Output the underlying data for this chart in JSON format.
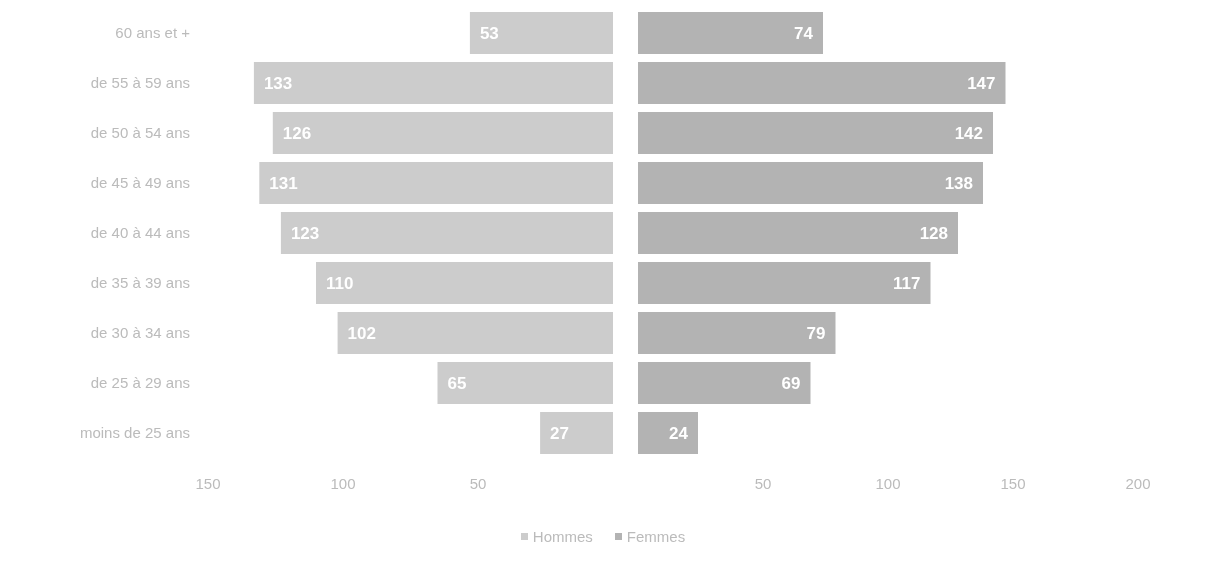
{
  "chart_data": [
    {
      "type": "bar",
      "orientation": "horizontal",
      "categories": [
        "60 ans et +",
        "de 55 à 59 ans",
        "de 50 à 54 ans",
        "de 45 à 49 ans",
        "de 40 à 44 ans",
        "de 35 à 39 ans",
        "de 30 à 34 ans",
        "de 25 à 29 ans",
        "moins de 25 ans"
      ],
      "series": [
        {
          "name": "Hommes",
          "color": "#cccccc",
          "values": [
            53,
            133,
            126,
            131,
            123,
            110,
            102,
            65,
            27
          ]
        }
      ],
      "xlim": [
        150,
        0
      ],
      "xticks": [
        150,
        100,
        50
      ],
      "data_labels": true,
      "grid": false,
      "legend": "bottom"
    },
    {
      "type": "bar",
      "orientation": "horizontal",
      "categories": [
        "60 ans et +",
        "de 55 à 59 ans",
        "de 50 à 54 ans",
        "de 45 à 49 ans",
        "de 40 à 44 ans",
        "de 35 à 39 ans",
        "de 30 à 34 ans",
        "de 25 à 29 ans",
        "moins de 25 ans"
      ],
      "series": [
        {
          "name": "Femmes",
          "color": "#b3b3b3",
          "values": [
            74,
            147,
            142,
            138,
            128,
            117,
            79,
            69,
            24
          ]
        }
      ],
      "xlim": [
        0,
        200
      ],
      "xticks": [
        50,
        100,
        150,
        200
      ],
      "tick_labels": "x",
      "data_labels": true,
      "grid": false,
      "legend": "bottom"
    }
  ]
}
